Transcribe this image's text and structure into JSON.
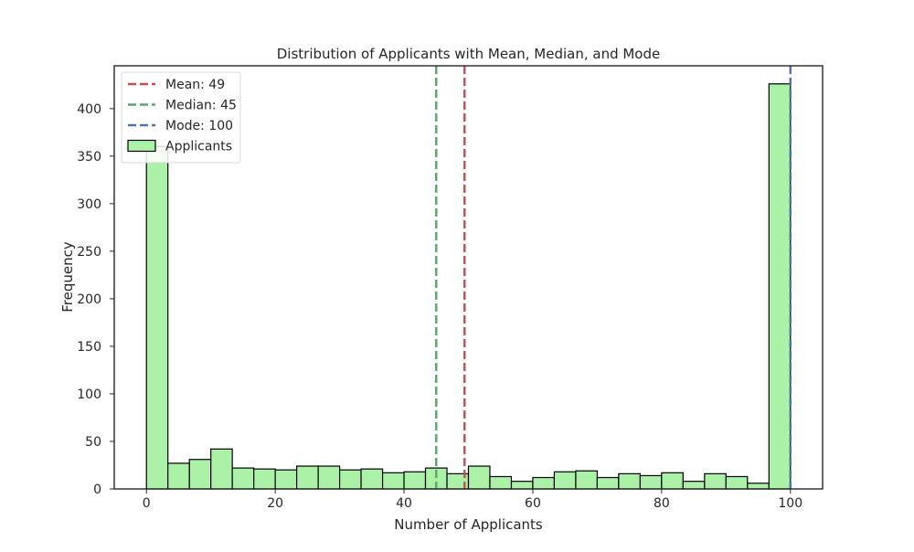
{
  "chart_data": {
    "type": "bar",
    "title": "Distribution of Applicants with Mean, Median, and Mode",
    "xlabel": "Number of Applicants",
    "ylabel": "Frequency",
    "xlim": [
      -5,
      105
    ],
    "ylim": [
      0,
      445
    ],
    "xticks": [
      0,
      20,
      40,
      60,
      80,
      100
    ],
    "yticks": [
      0,
      50,
      100,
      150,
      200,
      250,
      300,
      350,
      400
    ],
    "grid": false,
    "legend_position": "top-left",
    "bin_edges": [
      0,
      3.33,
      6.67,
      10,
      13.33,
      16.67,
      20,
      23.33,
      26.67,
      30,
      33.33,
      36.67,
      40,
      43.33,
      46.67,
      50,
      53.33,
      56.67,
      60,
      63.33,
      66.67,
      70,
      73.33,
      76.67,
      80,
      83.33,
      86.67,
      90,
      93.33,
      96.67,
      100
    ],
    "series": [
      {
        "name": "Applicants",
        "kind": "histogram",
        "color": "#abf2a8",
        "edgecolor": "#000000",
        "values": [
          360,
          27,
          31,
          42,
          22,
          21,
          20,
          24,
          24,
          20,
          21,
          17,
          18,
          22,
          16,
          24,
          13,
          8,
          12,
          18,
          19,
          12,
          16,
          14,
          17,
          8,
          16,
          13,
          6,
          426
        ]
      }
    ],
    "reference_lines": [
      {
        "label": "Mean: 49",
        "x": 49.4,
        "color": "#c44e52",
        "style": "dashed"
      },
      {
        "label": "Median: 45",
        "x": 45,
        "color": "#55a868",
        "style": "dashed"
      },
      {
        "label": "Mode: 100",
        "x": 100,
        "color": "#4c72b0",
        "style": "dashed"
      }
    ]
  }
}
